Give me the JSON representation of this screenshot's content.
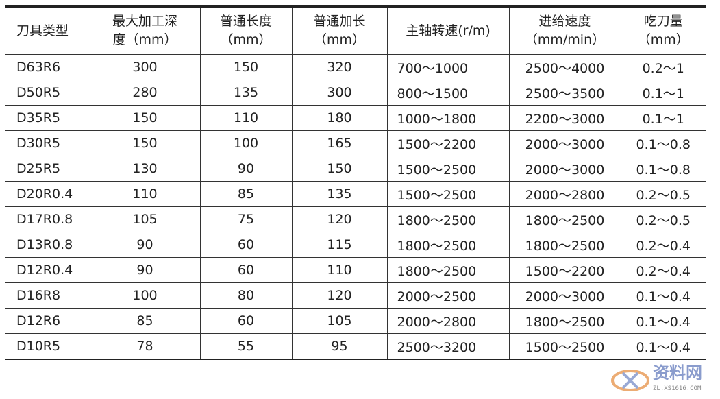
{
  "headers": [
    [
      "刀具类型",
      ""
    ],
    [
      "最大加工深",
      "度（mm）"
    ],
    [
      "普通长度",
      "（mm）"
    ],
    [
      "普通加长",
      "（mm）"
    ],
    [
      "主轴转速(r/m)",
      ""
    ],
    [
      "进给速度",
      "（mm/min）"
    ],
    [
      "吃刀量",
      "（mm）"
    ]
  ],
  "rows": [
    [
      "D63R6",
      "300",
      "150",
      "320",
      "700～1000",
      "2500～4000",
      "0.2～1"
    ],
    [
      "D50R5",
      "280",
      "135",
      "300",
      "800～1500",
      "2500～3500",
      "0.1～1"
    ],
    [
      "D35R5",
      "150",
      "110",
      "180",
      "1000～1800",
      "2200～3000",
      "0.1～1"
    ],
    [
      "D30R5",
      "150",
      "100",
      "165",
      "1500～2200",
      "2000～3000",
      "0.1～0.8"
    ],
    [
      "D25R5",
      "130",
      "90",
      "150",
      "1500～2500",
      "2000～3000",
      "0.1～0.8"
    ],
    [
      "D20R0.4",
      "110",
      "85",
      "135",
      "1500～2500",
      "2000～2800",
      "0.2～0.5"
    ],
    [
      "D17R0.8",
      "105",
      "75",
      "120",
      "1800～2500",
      "1800～2500",
      "0.2～0.5"
    ],
    [
      "D13R0.8",
      "90",
      "60",
      "115",
      "1800～2500",
      "1800～2500",
      "0.2～0.4"
    ],
    [
      "D12R0.4",
      "90",
      "60",
      "110",
      "1800～2500",
      "1500～2200",
      "0.2～0.4"
    ],
    [
      "D16R8",
      "100",
      "80",
      "120",
      "2000～2500",
      "2000～3000",
      "0.1～0.4"
    ],
    [
      "D12R6",
      "85",
      "60",
      "105",
      "2000～2800",
      "1800～2500",
      "0.1～0.4"
    ],
    [
      "D10R5",
      "78",
      "55",
      "95",
      "2500～3200",
      "1500～2500",
      "0.1～0.4"
    ]
  ],
  "watermark": {
    "text": "资料网",
    "url": "ZL.XS1616.COM"
  }
}
